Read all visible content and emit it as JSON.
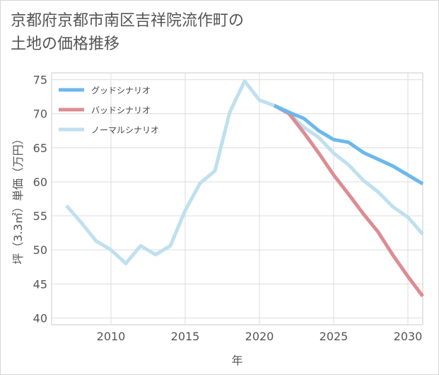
{
  "title": "京都府京都市南区吉祥院流作町の\n土地の価格推移",
  "chart_data": {
    "type": "line",
    "xlabel": "年",
    "ylabel": "坪（3.3㎡）単価（万円）",
    "xlim": [
      2006,
      2031
    ],
    "ylim": [
      39,
      76
    ],
    "x_ticks": [
      2010,
      2015,
      2020,
      2025,
      2030
    ],
    "y_ticks": [
      40,
      45,
      50,
      55,
      60,
      65,
      70,
      75
    ],
    "grid": true,
    "legend_position": "top-left",
    "series": [
      {
        "name": "グッドシナリオ",
        "color": "#6cb8ec",
        "points": [
          [
            2021,
            71.2
          ],
          [
            2022,
            70.2
          ],
          [
            2023,
            69.3
          ],
          [
            2024,
            67.5
          ],
          [
            2025,
            66.2
          ],
          [
            2026,
            65.8
          ],
          [
            2027,
            64.3
          ],
          [
            2028,
            63.3
          ],
          [
            2029,
            62.3
          ],
          [
            2030,
            61.0
          ],
          [
            2031,
            59.7
          ]
        ]
      },
      {
        "name": "バッドシナリオ",
        "color": "#dd8c93",
        "points": [
          [
            2021,
            71.2
          ],
          [
            2022,
            70.0
          ],
          [
            2023,
            67.2
          ],
          [
            2024,
            64.2
          ],
          [
            2025,
            61.0
          ],
          [
            2026,
            58.2
          ],
          [
            2027,
            55.3
          ],
          [
            2028,
            52.6
          ],
          [
            2029,
            49.2
          ],
          [
            2030,
            46.1
          ],
          [
            2031,
            43.2
          ]
        ]
      },
      {
        "name": "ノーマルシナリオ",
        "color": "#bfe0ee",
        "points": [
          [
            2007,
            56.5
          ],
          [
            2008,
            54.0
          ],
          [
            2009,
            51.3
          ],
          [
            2010,
            50.0
          ],
          [
            2011,
            48.0
          ],
          [
            2012,
            50.6
          ],
          [
            2013,
            49.3
          ],
          [
            2014,
            50.6
          ],
          [
            2015,
            55.8
          ],
          [
            2016,
            59.8
          ],
          [
            2017,
            61.6
          ],
          [
            2018,
            70.2
          ],
          [
            2019,
            74.8
          ],
          [
            2020,
            72.0
          ],
          [
            2021,
            71.2
          ],
          [
            2022,
            70.0
          ],
          [
            2023,
            68.0
          ],
          [
            2024,
            66.5
          ],
          [
            2025,
            64.2
          ],
          [
            2026,
            62.5
          ],
          [
            2027,
            60.2
          ],
          [
            2028,
            58.5
          ],
          [
            2029,
            56.3
          ],
          [
            2030,
            54.8
          ],
          [
            2031,
            52.3
          ]
        ]
      }
    ]
  }
}
